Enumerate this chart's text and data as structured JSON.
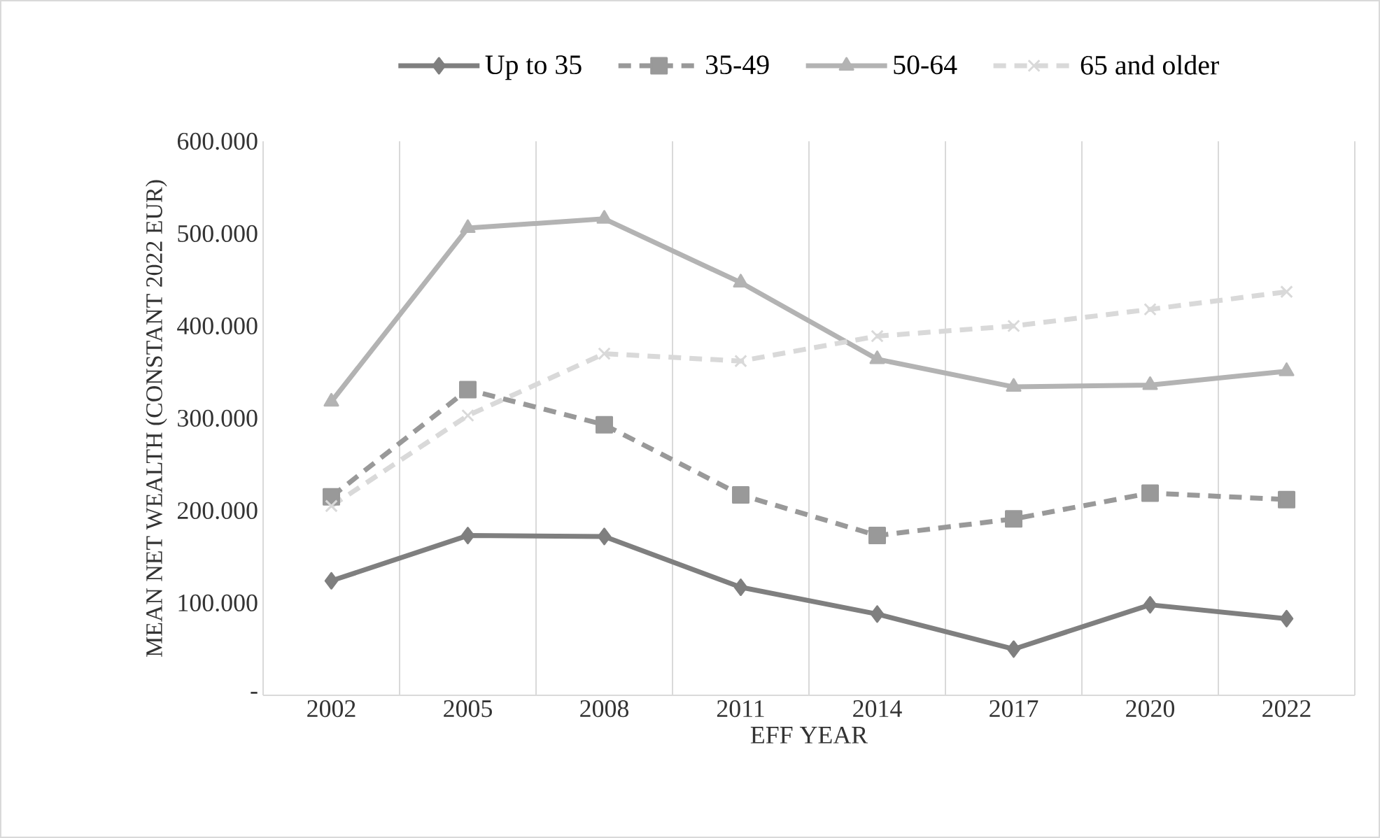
{
  "chart_data": {
    "type": "line",
    "xlabel": "EFF YEAR",
    "ylabel": "MEAN NET WEALTH (CONSTANT 2022 EUR)",
    "categories": [
      "2002",
      "2005",
      "2008",
      "2011",
      "2014",
      "2017",
      "2020",
      "2022"
    ],
    "series": [
      {
        "name": "Up to 35",
        "color": "#7f7f7f",
        "marker": "diamond",
        "line_style": "solid",
        "values": [
          124000,
          173000,
          172000,
          117000,
          88000,
          50000,
          98000,
          83000
        ]
      },
      {
        "name": "35-49",
        "color": "#999999",
        "marker": "square",
        "line_style": "dashed",
        "values": [
          215000,
          331000,
          293000,
          217000,
          173000,
          191000,
          219000,
          212000
        ]
      },
      {
        "name": "50-64",
        "color": "#b3b3b3",
        "marker": "triangle",
        "line_style": "solid",
        "values": [
          318000,
          506000,
          516000,
          447000,
          364000,
          334000,
          336000,
          351000
        ]
      },
      {
        "name": "65 and older",
        "color": "#d9d9d9",
        "marker": "cross",
        "line_style": "dashed",
        "values": [
          205000,
          303000,
          370000,
          362000,
          389000,
          400000,
          418000,
          437000
        ]
      }
    ],
    "ylim": [
      0,
      600000
    ],
    "yticks": [
      {
        "value": 0,
        "label": "-"
      },
      {
        "value": 100000,
        "label": "100.000"
      },
      {
        "value": 200000,
        "label": "200.000"
      },
      {
        "value": 300000,
        "label": "300.000"
      },
      {
        "value": 400000,
        "label": "400.000"
      },
      {
        "value": 500000,
        "label": "500.000"
      },
      {
        "value": 600000,
        "label": "600.000"
      }
    ],
    "grid": "x",
    "legend": "top"
  }
}
